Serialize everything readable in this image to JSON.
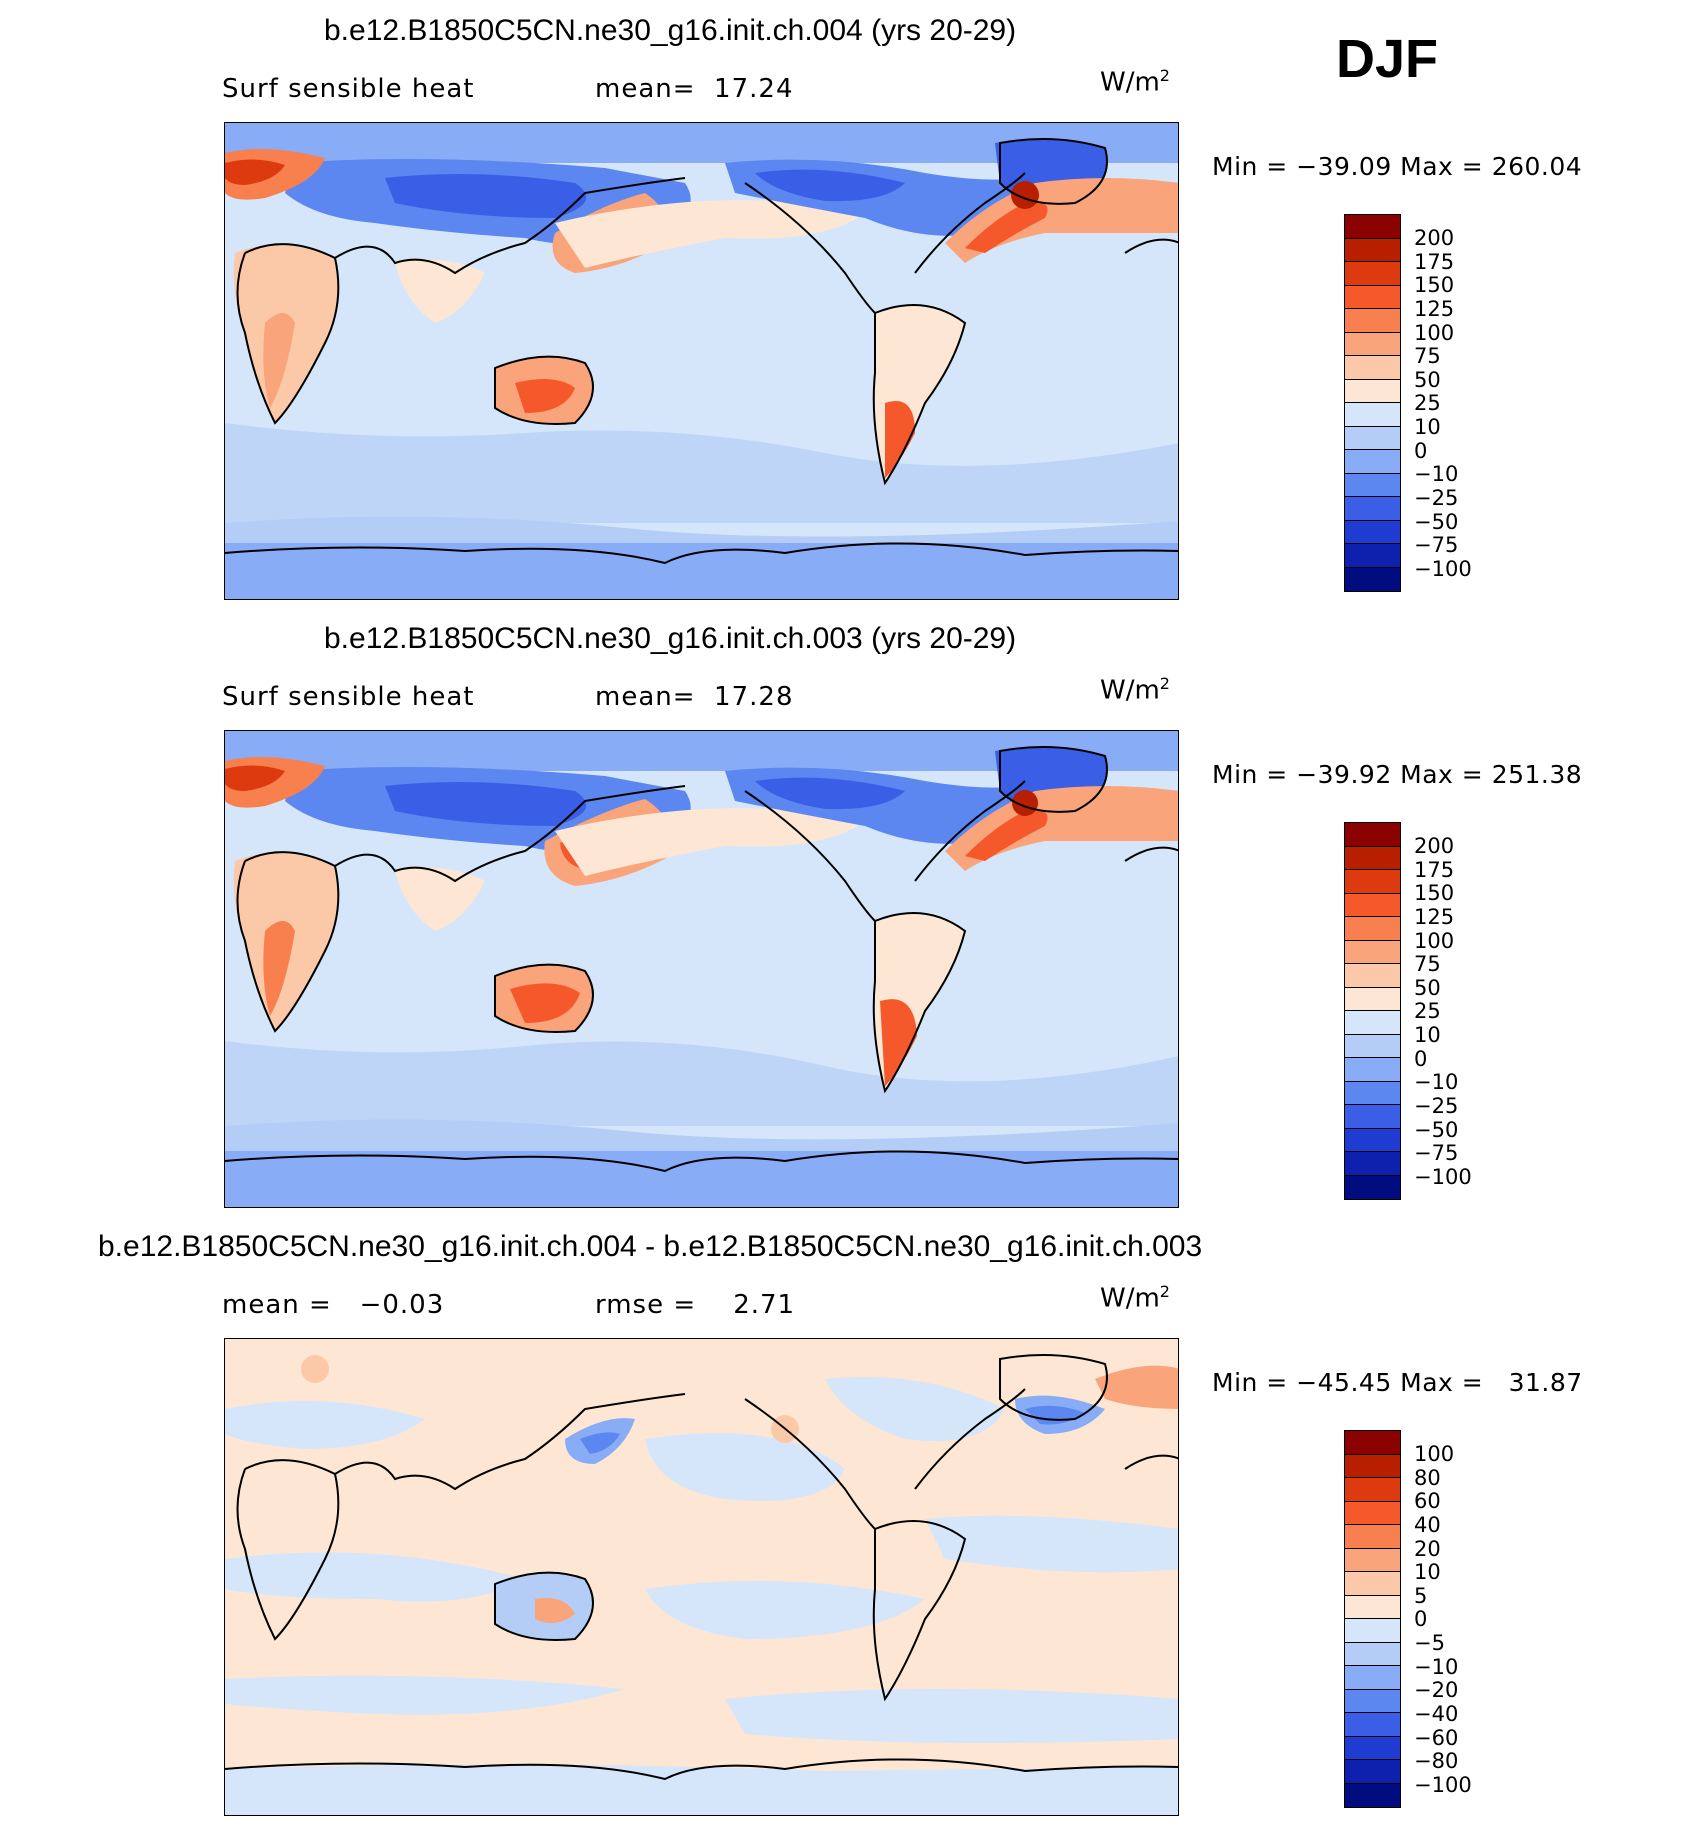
{
  "season": "DJF",
  "units": "W/m",
  "units_sup": "2",
  "panels": [
    {
      "title": "b.e12.B1850C5CN.ne30_g16.init.ch.004 (yrs 20-29)",
      "left_label": "Surf sensible heat",
      "right_label": "mean=  17.24",
      "minmax": "Min = −39.09 Max = 260.04",
      "colorbar": {
        "ticks": [
          "200",
          "175",
          "150",
          "125",
          "100",
          "75",
          "50",
          "25",
          "10",
          "0",
          "−10",
          "−25",
          "−50",
          "−75",
          "−100"
        ],
        "colors": [
          "#8B0000",
          "#B81E00",
          "#DE3A10",
          "#F5582A",
          "#F7804E",
          "#F9A47A",
          "#FCC9A8",
          "#FDE7D4",
          "#D5E6FA",
          "#B3CDF7",
          "#88ACF5",
          "#5C87F0",
          "#3A5FE6",
          "#1E3BD2",
          "#0D20AE",
          "#000C80"
        ]
      }
    },
    {
      "title": "b.e12.B1850C5CN.ne30_g16.init.ch.003 (yrs 20-29)",
      "left_label": "Surf sensible heat",
      "right_label": "mean=  17.28",
      "minmax": "Min = −39.92 Max = 251.38",
      "colorbar": {
        "ticks": [
          "200",
          "175",
          "150",
          "125",
          "100",
          "75",
          "50",
          "25",
          "10",
          "0",
          "−10",
          "−25",
          "−50",
          "−75",
          "−100"
        ],
        "colors": [
          "#8B0000",
          "#B81E00",
          "#DE3A10",
          "#F5582A",
          "#F7804E",
          "#F9A47A",
          "#FCC9A8",
          "#FDE7D4",
          "#D5E6FA",
          "#B3CDF7",
          "#88ACF5",
          "#5C87F0",
          "#3A5FE6",
          "#1E3BD2",
          "#0D20AE",
          "#000C80"
        ]
      }
    },
    {
      "title": "b.e12.B1850C5CN.ne30_g16.init.ch.004 - b.e12.B1850C5CN.ne30_g16.init.ch.003",
      "left_label": "mean =   −0.03",
      "right_label": "rmse =    2.71",
      "minmax": "Min = −45.45 Max =   31.87",
      "colorbar": {
        "ticks": [
          "100",
          "80",
          "60",
          "40",
          "20",
          "10",
          "5",
          "0",
          "−5",
          "−10",
          "−20",
          "−40",
          "−60",
          "−80",
          "−100"
        ],
        "colors": [
          "#8B0000",
          "#B81E00",
          "#DE3A10",
          "#F5582A",
          "#F7804E",
          "#F9A47A",
          "#FCC9A8",
          "#FDE7D4",
          "#D5E6FA",
          "#B3CDF7",
          "#88ACF5",
          "#5C87F0",
          "#3A5FE6",
          "#1E3BD2",
          "#0D20AE",
          "#000C80"
        ]
      }
    }
  ]
}
